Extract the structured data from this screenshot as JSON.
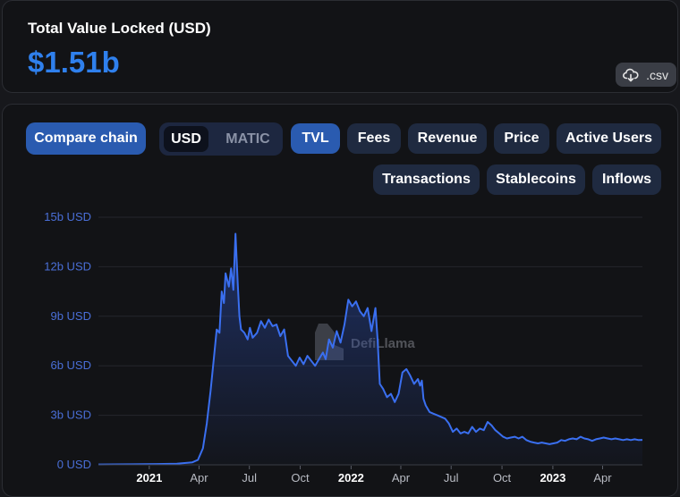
{
  "header": {
    "title": "Total Value Locked (USD)",
    "value": "$1.51b",
    "csv_label": ".csv",
    "csv_icon": "cloud-download-icon"
  },
  "controls": {
    "compare_label": "Compare chain",
    "currency": {
      "options": [
        "USD",
        "MATIC"
      ],
      "selected": "USD"
    },
    "metric_tabs": [
      "TVL",
      "Fees",
      "Revenue",
      "Price",
      "Active Users",
      "Transactions",
      "Stablecoins",
      "Inflows"
    ],
    "active_metric": "TVL"
  },
  "watermark": "DefiLlama",
  "colors": {
    "accent": "#2f80ed",
    "line": "#3a6ff0",
    "button": "#1f2a40",
    "button_active": "#2a5bb0"
  },
  "chart_data": {
    "type": "area",
    "ylabel_ticks": [
      "0 USD",
      "3b USD",
      "6b USD",
      "9b USD",
      "12b USD",
      "15b USD"
    ],
    "y_tick_values": [
      0,
      3,
      6,
      9,
      12,
      15
    ],
    "ylim": [
      0,
      15
    ],
    "y_unit": "billion USD",
    "x_ticks": [
      {
        "label": "2021",
        "date": "2021-01-01",
        "year": true
      },
      {
        "label": "Apr",
        "date": "2021-04-01",
        "year": false
      },
      {
        "label": "Jul",
        "date": "2021-07-01",
        "year": false
      },
      {
        "label": "Oct",
        "date": "2021-10-01",
        "year": false
      },
      {
        "label": "2022",
        "date": "2022-01-01",
        "year": true
      },
      {
        "label": "Apr",
        "date": "2022-04-01",
        "year": false
      },
      {
        "label": "Jul",
        "date": "2022-07-01",
        "year": false
      },
      {
        "label": "Oct",
        "date": "2022-10-01",
        "year": false
      },
      {
        "label": "2023",
        "date": "2023-01-01",
        "year": true
      },
      {
        "label": "Apr",
        "date": "2023-04-01",
        "year": false
      }
    ],
    "xlim": [
      "2020-10-01",
      "2023-06-12"
    ],
    "series": [
      {
        "points": [
          [
            "2020-10-01",
            0.02
          ],
          [
            "2020-12-01",
            0.03
          ],
          [
            "2021-01-15",
            0.05
          ],
          [
            "2021-02-20",
            0.07
          ],
          [
            "2021-03-20",
            0.15
          ],
          [
            "2021-03-30",
            0.3
          ],
          [
            "2021-04-08",
            1.0
          ],
          [
            "2021-04-15",
            2.5
          ],
          [
            "2021-04-22",
            4.5
          ],
          [
            "2021-04-28",
            6.5
          ],
          [
            "2021-05-03",
            8.2
          ],
          [
            "2021-05-08",
            8.0
          ],
          [
            "2021-05-12",
            10.5
          ],
          [
            "2021-05-16",
            9.8
          ],
          [
            "2021-05-19",
            11.6
          ],
          [
            "2021-05-25",
            10.8
          ],
          [
            "2021-05-29",
            11.9
          ],
          [
            "2021-06-02",
            10.6
          ],
          [
            "2021-06-06",
            14.0
          ],
          [
            "2021-06-10",
            11.0
          ],
          [
            "2021-06-13",
            9.0
          ],
          [
            "2021-06-16",
            8.2
          ],
          [
            "2021-06-22",
            8.0
          ],
          [
            "2021-06-28",
            7.6
          ],
          [
            "2021-07-02",
            8.3
          ],
          [
            "2021-07-07",
            7.7
          ],
          [
            "2021-07-15",
            8.0
          ],
          [
            "2021-07-22",
            8.7
          ],
          [
            "2021-07-29",
            8.3
          ],
          [
            "2021-08-05",
            8.8
          ],
          [
            "2021-08-12",
            8.4
          ],
          [
            "2021-08-19",
            8.5
          ],
          [
            "2021-08-26",
            7.8
          ],
          [
            "2021-09-02",
            8.2
          ],
          [
            "2021-09-09",
            6.6
          ],
          [
            "2021-09-16",
            6.3
          ],
          [
            "2021-09-23",
            6.0
          ],
          [
            "2021-09-30",
            6.5
          ],
          [
            "2021-10-07",
            6.1
          ],
          [
            "2021-10-14",
            6.6
          ],
          [
            "2021-10-21",
            6.3
          ],
          [
            "2021-10-28",
            6.0
          ],
          [
            "2021-11-04",
            6.4
          ],
          [
            "2021-11-11",
            6.8
          ],
          [
            "2021-11-16",
            6.4
          ],
          [
            "2021-11-22",
            7.6
          ],
          [
            "2021-11-29",
            7.1
          ],
          [
            "2021-12-06",
            8.1
          ],
          [
            "2021-12-13",
            7.4
          ],
          [
            "2021-12-20",
            8.5
          ],
          [
            "2021-12-27",
            10.0
          ],
          [
            "2022-01-03",
            9.6
          ],
          [
            "2022-01-10",
            9.9
          ],
          [
            "2022-01-17",
            9.3
          ],
          [
            "2022-01-24",
            9.0
          ],
          [
            "2022-01-31",
            9.5
          ],
          [
            "2022-02-07",
            8.1
          ],
          [
            "2022-02-14",
            9.5
          ],
          [
            "2022-02-18",
            7.6
          ],
          [
            "2022-02-22",
            4.9
          ],
          [
            "2022-02-28",
            4.6
          ],
          [
            "2022-03-07",
            4.1
          ],
          [
            "2022-03-14",
            4.3
          ],
          [
            "2022-03-21",
            3.8
          ],
          [
            "2022-03-28",
            4.3
          ],
          [
            "2022-04-04",
            5.6
          ],
          [
            "2022-04-11",
            5.8
          ],
          [
            "2022-04-18",
            5.4
          ],
          [
            "2022-04-25",
            4.9
          ],
          [
            "2022-05-02",
            5.2
          ],
          [
            "2022-05-06",
            4.8
          ],
          [
            "2022-05-09",
            5.1
          ],
          [
            "2022-05-12",
            4.0
          ],
          [
            "2022-05-16",
            3.6
          ],
          [
            "2022-05-23",
            3.2
          ],
          [
            "2022-05-30",
            3.1
          ],
          [
            "2022-06-06",
            3.0
          ],
          [
            "2022-06-13",
            2.9
          ],
          [
            "2022-06-20",
            2.8
          ],
          [
            "2022-06-27",
            2.5
          ],
          [
            "2022-07-04",
            2.0
          ],
          [
            "2022-07-11",
            2.2
          ],
          [
            "2022-07-18",
            1.9
          ],
          [
            "2022-07-25",
            2.0
          ],
          [
            "2022-08-01",
            1.9
          ],
          [
            "2022-08-08",
            2.3
          ],
          [
            "2022-08-15",
            2.0
          ],
          [
            "2022-08-22",
            2.2
          ],
          [
            "2022-08-29",
            2.1
          ],
          [
            "2022-09-05",
            2.6
          ],
          [
            "2022-09-12",
            2.4
          ],
          [
            "2022-09-19",
            2.1
          ],
          [
            "2022-09-26",
            1.9
          ],
          [
            "2022-10-03",
            1.7
          ],
          [
            "2022-10-10",
            1.6
          ],
          [
            "2022-10-17",
            1.65
          ],
          [
            "2022-10-24",
            1.7
          ],
          [
            "2022-10-31",
            1.6
          ],
          [
            "2022-11-07",
            1.7
          ],
          [
            "2022-11-14",
            1.5
          ],
          [
            "2022-11-21",
            1.4
          ],
          [
            "2022-11-28",
            1.35
          ],
          [
            "2022-12-05",
            1.3
          ],
          [
            "2022-12-12",
            1.35
          ],
          [
            "2022-12-19",
            1.3
          ],
          [
            "2022-12-26",
            1.25
          ],
          [
            "2023-01-02",
            1.3
          ],
          [
            "2023-01-09",
            1.35
          ],
          [
            "2023-01-16",
            1.5
          ],
          [
            "2023-01-23",
            1.45
          ],
          [
            "2023-01-30",
            1.55
          ],
          [
            "2023-02-06",
            1.6
          ],
          [
            "2023-02-13",
            1.55
          ],
          [
            "2023-02-20",
            1.7
          ],
          [
            "2023-02-27",
            1.6
          ],
          [
            "2023-03-06",
            1.55
          ],
          [
            "2023-03-13",
            1.45
          ],
          [
            "2023-03-20",
            1.55
          ],
          [
            "2023-03-27",
            1.6
          ],
          [
            "2023-04-03",
            1.65
          ],
          [
            "2023-04-10",
            1.6
          ],
          [
            "2023-04-17",
            1.55
          ],
          [
            "2023-04-24",
            1.6
          ],
          [
            "2023-05-01",
            1.55
          ],
          [
            "2023-05-08",
            1.5
          ],
          [
            "2023-05-15",
            1.55
          ],
          [
            "2023-05-22",
            1.5
          ],
          [
            "2023-05-29",
            1.55
          ],
          [
            "2023-06-05",
            1.5
          ],
          [
            "2023-06-12",
            1.51
          ]
        ]
      }
    ],
    "grid": true,
    "legend": "none"
  }
}
